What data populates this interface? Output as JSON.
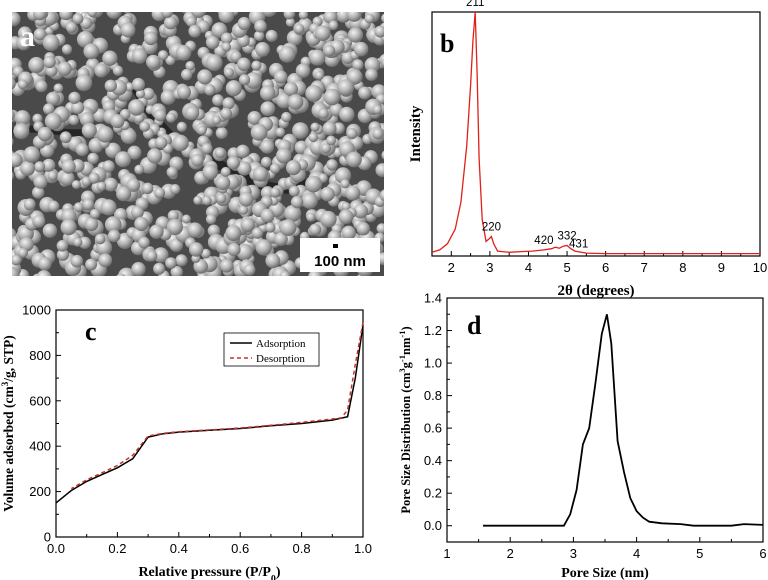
{
  "panels": {
    "a": {
      "letter": "a",
      "scale_bar": "100 nm"
    }
  },
  "chart_data": [
    {
      "panel": "b",
      "letter": "b",
      "type": "line",
      "title": "",
      "xlabel": "2θ (degrees)",
      "ylabel": "Intensity",
      "xlim": [
        1.5,
        10
      ],
      "xticks": [
        2,
        3,
        4,
        5,
        6,
        7,
        8,
        9,
        10
      ],
      "ylim": [
        0,
        100
      ],
      "yticks_shown": false,
      "grid": false,
      "series": [
        {
          "color": "#e0201a",
          "x": [
            1.5,
            1.7,
            1.9,
            2.1,
            2.25,
            2.4,
            2.5,
            2.56,
            2.62,
            2.67,
            2.72,
            2.8,
            2.9,
            2.98,
            3.04,
            3.1,
            3.2,
            3.5,
            3.8,
            4.1,
            4.4,
            4.6,
            4.7,
            4.8,
            4.9,
            5.0,
            5.1,
            5.2,
            5.5,
            6.0,
            7.0,
            8.0,
            9.0,
            10.0
          ],
          "y": [
            1.5,
            2.5,
            5,
            11,
            22,
            45,
            70,
            88,
            100,
            75,
            40,
            15,
            6,
            7,
            8,
            5,
            2,
            1.5,
            1.8,
            2,
            2.5,
            3,
            3.6,
            3.2,
            4,
            4.3,
            3,
            2,
            1.2,
            1,
            1,
            1,
            1,
            1
          ]
        }
      ],
      "peak_labels": [
        {
          "text": "211",
          "x": 2.62,
          "y": 100
        },
        {
          "text": "220",
          "x": 3.04,
          "y": 8
        },
        {
          "text": "420",
          "x": 4.4,
          "y": 2.5
        },
        {
          "text": "332",
          "x": 5.0,
          "y": 4.3
        },
        {
          "text": "431",
          "x": 5.3,
          "y": 1
        }
      ]
    },
    {
      "panel": "c",
      "letter": "c",
      "type": "line",
      "title": "",
      "xlabel": "Relative pressure (P/P",
      "xlabel_sub": "0",
      "xlabel_end": ")",
      "ylabel": "Volume adsorbed (cm",
      "ylabel_sup": "3",
      "ylabel_end": "/g, STP)",
      "xlim": [
        0,
        1.0
      ],
      "ylim": [
        0,
        1000
      ],
      "xticks": [
        "0.0",
        "0.2",
        "0.4",
        "0.6",
        "0.8",
        "1.0"
      ],
      "yticks": [
        "0",
        "200",
        "400",
        "600",
        "800",
        "1000"
      ],
      "grid": false,
      "legend_position": "top-right",
      "series": [
        {
          "name": "Adsorption",
          "color": "#000000",
          "dash": "none",
          "x": [
            0.0,
            0.05,
            0.1,
            0.15,
            0.2,
            0.25,
            0.3,
            0.35,
            0.4,
            0.5,
            0.6,
            0.7,
            0.8,
            0.9,
            0.95,
            0.975,
            1.0
          ],
          "y": [
            150,
            205,
            245,
            275,
            305,
            345,
            440,
            455,
            462,
            470,
            478,
            490,
            500,
            515,
            530,
            700,
            935
          ]
        },
        {
          "name": "Desorption",
          "color": "#c8302a",
          "dash": "4,3",
          "x": [
            1.0,
            0.975,
            0.95,
            0.93,
            0.9,
            0.8,
            0.7,
            0.6,
            0.5,
            0.4,
            0.35,
            0.3,
            0.25,
            0.2,
            0.15,
            0.1,
            0.05
          ],
          "y": [
            945,
            760,
            560,
            525,
            520,
            505,
            492,
            480,
            472,
            464,
            457,
            445,
            360,
            315,
            283,
            252,
            213
          ]
        }
      ]
    },
    {
      "panel": "d",
      "letter": "d",
      "type": "line",
      "title": "",
      "xlabel": "Pore Size (nm)",
      "ylabel": "Pore Size Distribution (cm",
      "ylabel_sup1": "3",
      "ylabel_mid": "g",
      "ylabel_sup2": "-1",
      "ylabel_mid2": "nm",
      "ylabel_sup3": "-1",
      "ylabel_end": ")",
      "xlim": [
        1,
        6
      ],
      "ylim": [
        -0.1,
        1.4
      ],
      "xticks": [
        "1",
        "2",
        "3",
        "4",
        "5",
        "6"
      ],
      "yticks": [
        "0.0",
        "0.2",
        "0.4",
        "0.6",
        "0.8",
        "1.0",
        "1.2",
        "1.4"
      ],
      "grid": false,
      "series": [
        {
          "color": "#000000",
          "x": [
            1.57,
            2.0,
            2.5,
            2.85,
            2.95,
            3.05,
            3.15,
            3.25,
            3.35,
            3.45,
            3.53,
            3.6,
            3.7,
            3.8,
            3.9,
            4.0,
            4.1,
            4.2,
            4.4,
            4.7,
            4.9,
            5.2,
            5.5,
            5.7,
            6.0
          ],
          "y": [
            0.0,
            0.0,
            0.0,
            0.0,
            0.07,
            0.22,
            0.5,
            0.6,
            0.88,
            1.18,
            1.3,
            1.12,
            0.52,
            0.33,
            0.17,
            0.09,
            0.05,
            0.025,
            0.015,
            0.01,
            0.0,
            0.0,
            0.0,
            0.01,
            0.005
          ]
        }
      ]
    }
  ]
}
